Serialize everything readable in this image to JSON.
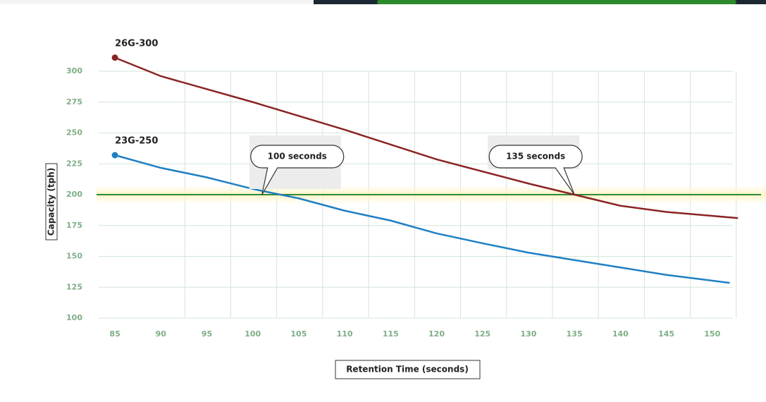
{
  "chart_data": {
    "type": "line",
    "xlabel": "Retention Time (seconds)",
    "ylabel": "Capacity (tph)",
    "xlim": [
      83,
      156
    ],
    "xticks": [
      85,
      90,
      95,
      100,
      105,
      110,
      115,
      120,
      125,
      130,
      135,
      140,
      145,
      150
    ],
    "ylim": [
      100,
      300
    ],
    "yticks": [
      100,
      125,
      150,
      175,
      200,
      225,
      250,
      275,
      300
    ],
    "grid": true,
    "reference_line": {
      "value": 200,
      "color": "#2e8b3a"
    },
    "series": [
      {
        "name": "26G-300",
        "color": "#8b2424",
        "x": [
          85,
          90,
          100,
          110,
          120,
          130,
          135,
          140,
          145,
          152.8
        ],
        "values": [
          311,
          296,
          275,
          252.6,
          228.6,
          209,
          200,
          191,
          186,
          181
        ]
      },
      {
        "name": "23G-250",
        "color": "#1f7fc4",
        "x": [
          85,
          90,
          95,
          100,
          105,
          110,
          115,
          120,
          125,
          130,
          135,
          140,
          145,
          151.9
        ],
        "values": [
          232,
          221.7,
          214,
          204.6,
          197,
          187,
          179,
          168.6,
          160.6,
          153,
          147,
          141,
          135,
          128.5
        ]
      }
    ],
    "annotations": [
      {
        "text": "100 seconds",
        "x": 101,
        "y": 200
      },
      {
        "text": "135 seconds",
        "x": 135,
        "y": 200
      }
    ]
  }
}
